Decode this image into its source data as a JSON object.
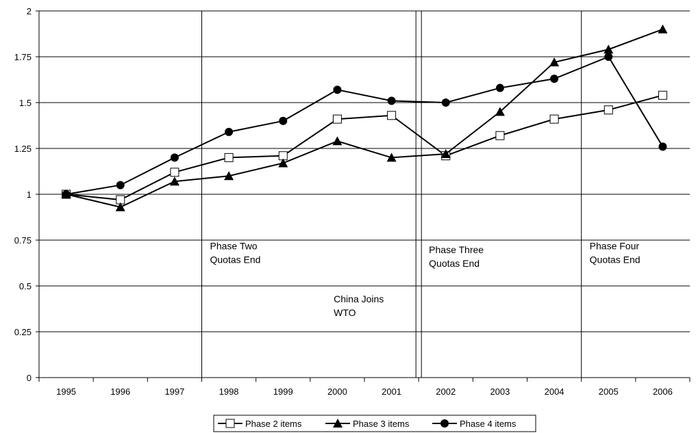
{
  "chart_data": {
    "type": "line",
    "title": "",
    "xlabel": "",
    "ylabel": "",
    "categories": [
      "1995",
      "1996",
      "1997",
      "1998",
      "1999",
      "2000",
      "2001",
      "2002",
      "2003",
      "2004",
      "2005",
      "2006"
    ],
    "ylim": [
      0,
      2
    ],
    "yticks": [
      "0",
      "0.25",
      "0.5",
      "0.75",
      "1",
      "1.25",
      "1.5",
      "1.75",
      "2"
    ],
    "grid": true,
    "legend_position": "bottom",
    "series": [
      {
        "name": "Phase 2 items",
        "marker": "open-square",
        "color": "#000000",
        "values": [
          1.0,
          0.97,
          1.12,
          1.2,
          1.21,
          1.41,
          1.43,
          1.21,
          1.32,
          1.41,
          1.46,
          1.54
        ]
      },
      {
        "name": "Phase 3 items",
        "marker": "filled-triangle",
        "color": "#000000",
        "values": [
          1.0,
          0.93,
          1.07,
          1.1,
          1.17,
          1.29,
          1.2,
          1.22,
          1.45,
          1.72,
          1.79,
          1.9
        ]
      },
      {
        "name": "Phase 4 items",
        "marker": "filled-circle",
        "color": "#000000",
        "values": [
          1.0,
          1.05,
          1.2,
          1.34,
          1.4,
          1.57,
          1.51,
          1.5,
          1.58,
          1.63,
          1.75,
          1.26
        ]
      }
    ],
    "events": [
      {
        "name": "phase-two-quotas-end",
        "between": [
          1997,
          1998
        ],
        "lines": [
          "Phase Two",
          "Quotas End"
        ],
        "text_y": 0.7
      },
      {
        "name": "china-joins-wto",
        "between": [
          2001,
          2002
        ],
        "lines": [
          "China Joins",
          "WTO"
        ],
        "text_y": 0.41
      },
      {
        "name": "phase-three-quotas-end",
        "between": [
          2001,
          2002
        ],
        "lines": [
          "Phase Three",
          "Quotas End"
        ],
        "text_y": 0.68
      },
      {
        "name": "phase-four-quotas-end",
        "between": [
          2004,
          2005
        ],
        "lines": [
          "Phase Four",
          "Quotas End"
        ],
        "text_y": 0.7
      }
    ]
  }
}
